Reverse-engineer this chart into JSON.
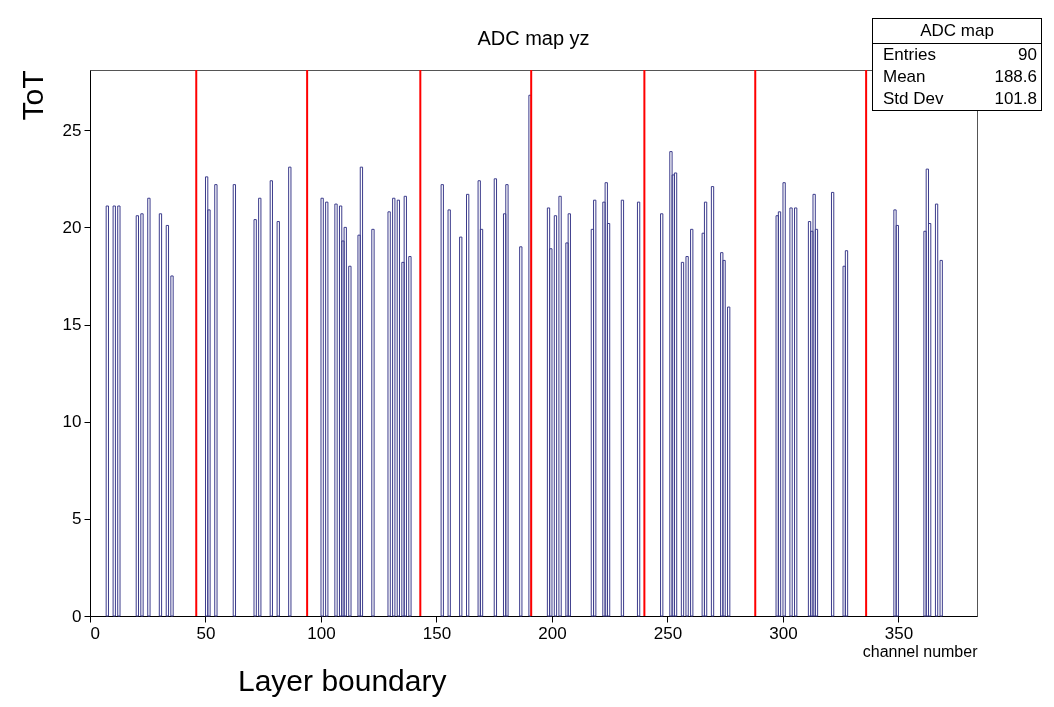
{
  "chart_data": {
    "type": "histogram",
    "title": "ADC map yz",
    "xlabel": "channel number",
    "ylabel": "ToT",
    "bins": [
      0,
      1,
      2,
      3,
      4,
      5,
      6,
      7,
      8,
      9,
      10,
      11,
      12,
      13,
      14,
      15,
      16,
      17,
      18,
      19,
      20,
      21,
      22,
      23,
      24,
      25,
      26,
      27,
      28,
      29,
      30,
      31,
      32,
      33,
      34,
      35,
      36,
      37,
      38,
      39,
      40,
      41,
      42,
      43,
      44,
      45,
      46,
      47,
      48,
      49,
      50,
      51,
      52,
      53,
      54,
      55,
      56,
      57,
      58,
      59,
      60,
      61,
      62,
      63,
      64,
      65,
      66,
      67,
      68,
      69,
      70,
      71,
      72,
      73,
      74,
      75,
      76,
      77,
      78,
      79,
      80,
      81,
      82,
      83,
      84,
      85,
      86,
      87,
      88,
      89,
      90,
      91,
      92,
      93,
      94,
      95,
      96,
      97,
      98,
      99,
      100,
      101,
      102,
      103,
      104,
      105,
      106,
      107,
      108,
      109,
      110,
      111,
      112,
      113,
      114,
      115,
      116,
      117,
      118,
      119,
      120,
      121,
      122,
      123,
      124,
      125,
      126,
      127,
      128,
      129,
      130,
      131,
      132,
      133,
      134,
      135,
      136,
      137,
      138,
      139,
      140,
      141,
      142,
      143,
      144,
      145,
      146,
      147,
      148,
      149,
      150,
      151,
      152,
      153,
      154,
      155,
      156,
      157,
      158,
      159,
      160,
      161,
      162,
      163,
      164,
      165,
      166,
      167,
      168,
      169,
      170,
      171,
      172,
      173,
      174,
      175,
      176,
      177,
      178,
      179,
      180,
      181,
      182,
      183,
      184,
      185,
      186,
      187,
      188,
      189,
      190,
      191,
      192,
      193,
      194,
      195,
      196,
      197,
      198,
      199,
      200,
      201,
      202,
      203,
      204,
      205,
      206,
      207,
      208,
      209,
      210,
      211,
      212,
      213,
      214,
      215,
      216,
      217,
      218,
      219,
      220,
      221,
      222,
      223,
      224,
      225,
      226,
      227,
      228,
      229,
      230,
      231,
      232,
      233,
      234,
      235,
      236,
      237,
      238,
      239,
      240,
      241,
      242,
      243,
      244,
      245,
      246,
      247,
      248,
      249,
      250,
      251,
      252,
      253,
      254,
      255,
      256,
      257,
      258,
      259,
      260,
      261,
      262,
      263,
      264,
      265,
      266,
      267,
      268,
      269,
      270,
      271,
      272,
      273,
      274,
      275,
      276,
      277,
      278,
      279,
      280,
      281,
      282,
      283,
      284,
      285,
      286,
      287,
      288,
      289,
      290,
      291,
      292,
      293,
      294,
      295,
      296,
      297,
      298,
      299,
      300,
      301,
      302,
      303,
      304,
      305,
      306,
      307,
      308,
      309,
      310,
      311,
      312,
      313,
      314,
      315,
      316,
      317,
      318,
      319,
      320,
      321,
      322,
      323,
      324,
      325,
      326,
      327,
      328,
      329,
      330,
      331,
      332,
      333,
      334,
      335,
      336,
      337,
      338,
      339,
      340,
      341,
      342,
      343,
      344,
      345,
      346,
      347,
      348,
      349,
      350,
      351,
      352,
      353,
      354,
      355,
      356,
      357,
      358,
      359,
      360,
      361,
      362,
      363,
      364,
      365,
      366,
      367,
      368,
      369,
      370,
      371,
      372,
      373,
      374,
      375,
      376,
      377,
      378,
      379,
      380,
      381,
      382,
      383,
      384
    ],
    "values": [
      0,
      0,
      0,
      0,
      0,
      0,
      0,
      21.1,
      0,
      0,
      21.1,
      0,
      21.1,
      0,
      0,
      0,
      0,
      0,
      0,
      0,
      20.6,
      0,
      20.7,
      0,
      0,
      21.5,
      0,
      0,
      0,
      0,
      20.7,
      0,
      0,
      20.1,
      0,
      17.5,
      0,
      0,
      0,
      0,
      0,
      0,
      0,
      0,
      0,
      0,
      0,
      0,
      0,
      0,
      22.6,
      20.9,
      0,
      0,
      22.2,
      0,
      0,
      0,
      0,
      0,
      0,
      0,
      22.2,
      0,
      0,
      0,
      0,
      0,
      0,
      0,
      0,
      20.4,
      0,
      21.5,
      0,
      0,
      0,
      0,
      22.4,
      0,
      0,
      20.3,
      0,
      0,
      0,
      0,
      23.1,
      0,
      0,
      0,
      0,
      0,
      0,
      0,
      0,
      0,
      0,
      0,
      0,
      0,
      21.5,
      0,
      21.3,
      0,
      0,
      0,
      21.2,
      0,
      21.1,
      19.3,
      20.0,
      0,
      18.0,
      0,
      0,
      0,
      19.6,
      23.1,
      0,
      0,
      0,
      0,
      19.9,
      0,
      0,
      0,
      0,
      0,
      0,
      20.8,
      0,
      21.5,
      0,
      21.4,
      0,
      18.2,
      21.6,
      0,
      18.5,
      0,
      0,
      0,
      0,
      0,
      0,
      0,
      0,
      0,
      0,
      0,
      0,
      0,
      22.2,
      0,
      0,
      20.9,
      0,
      0,
      0,
      0,
      19.5,
      0,
      0,
      21.7,
      0,
      0,
      0,
      0,
      22.4,
      19.9,
      0,
      0,
      0,
      0,
      0,
      22.5,
      0,
      0,
      0,
      20.7,
      22.2,
      0,
      0,
      0,
      0,
      0,
      19.0,
      0,
      0,
      0,
      26.8,
      0,
      0,
      0,
      0,
      0,
      0,
      0,
      21.0,
      18.9,
      0,
      20.6,
      0,
      21.6,
      0,
      0,
      19.2,
      20.7,
      0,
      0,
      0,
      0,
      0,
      0,
      0,
      0,
      0,
      19.9,
      21.4,
      0,
      0,
      0,
      21.3,
      22.3,
      20.2,
      0,
      0,
      0,
      0,
      0,
      21.4,
      0,
      0,
      0,
      0,
      0,
      0,
      21.3,
      0,
      0,
      0,
      0,
      0,
      0,
      0,
      0,
      0,
      20.7,
      0,
      0,
      0,
      23.9,
      22.7,
      22.8,
      0,
      0,
      18.2,
      0,
      18.5,
      0,
      19.9,
      0,
      0,
      0,
      0,
      19.7,
      21.3,
      0,
      0,
      22.1,
      0,
      0,
      0,
      18.7,
      18.3,
      0,
      15.9,
      0,
      0,
      0,
      0,
      0,
      0,
      0,
      0,
      0,
      0,
      0,
      0,
      0,
      0,
      0,
      0,
      0,
      0,
      0,
      0,
      20.6,
      20.8,
      0,
      22.3,
      0,
      0,
      21.0,
      0,
      21.0,
      0,
      0,
      0,
      0,
      0,
      20.3,
      19.8,
      21.7,
      19.9,
      0,
      0,
      0,
      0,
      0,
      0,
      21.8,
      0,
      0,
      0,
      0,
      18.0,
      18.8,
      0,
      0,
      0,
      0,
      0,
      0,
      0,
      0,
      0,
      0,
      0,
      0,
      0,
      0,
      0,
      0,
      0,
      0,
      0,
      0,
      20.9,
      20.1,
      0,
      0,
      0,
      0,
      0,
      0,
      0,
      0,
      0,
      0,
      0,
      19.8,
      23.0,
      20.2,
      0,
      0,
      21.2,
      0,
      18.3,
      0,
      0,
      0,
      0,
      0,
      0,
      0,
      0,
      0,
      0,
      0,
      0,
      0,
      0,
      0
    ],
    "color": "#3c3c8c",
    "xlim": [
      0,
      384
    ],
    "xticks": [
      0,
      50,
      100,
      150,
      200,
      250,
      300,
      350
    ],
    "ylim": [
      0,
      28.1
    ],
    "yticks": [
      0,
      5,
      10,
      15,
      20,
      25
    ],
    "ref_lines": [
      {
        "axis": "x",
        "value": 46,
        "color": "#ff0000"
      },
      {
        "axis": "x",
        "value": 94,
        "color": "#ff0000"
      },
      {
        "axis": "x",
        "value": 143,
        "color": "#ff0000"
      },
      {
        "axis": "x",
        "value": 191,
        "color": "#ff0000"
      },
      {
        "axis": "x",
        "value": 240,
        "color": "#ff0000"
      },
      {
        "axis": "x",
        "value": 288,
        "color": "#ff0000"
      },
      {
        "axis": "x",
        "value": 336,
        "color": "#ff0000"
      }
    ],
    "annotations": [
      "ADC map",
      "Entries",
      "90",
      "Mean",
      "188.6",
      "Std Dev",
      "101.8",
      "Layer boundary"
    ]
  }
}
